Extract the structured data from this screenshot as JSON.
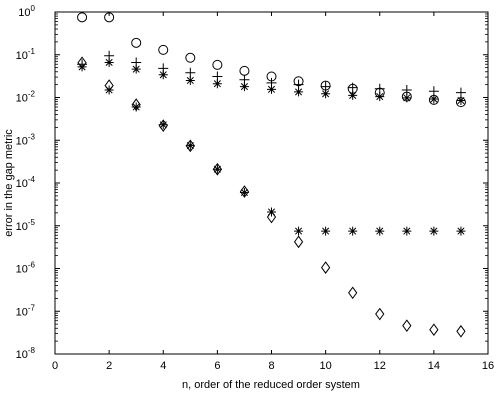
{
  "chart_data": {
    "type": "scatter",
    "xlabel": "n, order of the reduced order system",
    "ylabel": "error in the gap metric",
    "xlim": [
      0,
      16
    ],
    "ylim_log10": [
      -8,
      0
    ],
    "yscale": "log",
    "grid": false,
    "legend": "none",
    "x_ticks": [
      "0",
      "2",
      "4",
      "6",
      "8",
      "10",
      "12",
      "14",
      "16"
    ],
    "y_ticks": [
      {
        "base": "10",
        "exp": "0"
      },
      {
        "base": "10",
        "exp": "-1"
      },
      {
        "base": "10",
        "exp": "-2"
      },
      {
        "base": "10",
        "exp": "-3"
      },
      {
        "base": "10",
        "exp": "-4"
      },
      {
        "base": "10",
        "exp": "-5"
      },
      {
        "base": "10",
        "exp": "-6"
      },
      {
        "base": "10",
        "exp": "-7"
      },
      {
        "base": "10",
        "exp": "-8"
      }
    ],
    "series": [
      {
        "marker": "circle",
        "x": [
          1,
          2,
          3,
          4,
          5,
          6,
          7,
          8,
          9,
          10,
          11,
          12,
          13,
          14,
          15
        ],
        "y": [
          0.75,
          0.75,
          0.19,
          0.13,
          0.085,
          0.058,
          0.042,
          0.031,
          0.024,
          0.019,
          0.016,
          0.013,
          0.0105,
          0.0088,
          0.0078
        ]
      },
      {
        "marker": "plus",
        "x": [
          1,
          2,
          3,
          4,
          5,
          6,
          7,
          8,
          9,
          10,
          11,
          12,
          13,
          14,
          15
        ],
        "y": [
          0.06,
          0.095,
          0.066,
          0.048,
          0.038,
          0.031,
          0.026,
          0.022,
          0.02,
          0.018,
          0.017,
          0.016,
          0.015,
          0.014,
          0.013
        ]
      },
      {
        "marker": "asterisk",
        "x": [
          1,
          2,
          3,
          4,
          5,
          6,
          7,
          8,
          9,
          10,
          11,
          12,
          13,
          14,
          15
        ],
        "y": [
          0.052,
          0.015,
          0.006,
          0.0023,
          0.00075,
          0.00021,
          6e-05,
          2.1e-05,
          7.5e-06,
          7.5e-06,
          7.5e-06,
          7.5e-06,
          7.5e-06,
          7.5e-06,
          7.5e-06
        ]
      },
      {
        "marker": "diamond",
        "x": [
          1,
          2,
          3,
          4,
          5,
          6,
          7,
          8,
          9,
          10,
          11,
          12,
          13,
          14,
          15
        ],
        "y": [
          0.065,
          0.019,
          0.0068,
          0.0022,
          0.00074,
          0.00021,
          6.3e-05,
          1.6e-05,
          4.2e-06,
          1.05e-06,
          2.7e-07,
          8.6e-08,
          4.6e-08,
          3.7e-08,
          3.4e-08
        ]
      }
    ],
    "extra_markers": [
      {
        "marker": "asterisk",
        "x": [
          2,
          3,
          4,
          5,
          6,
          7,
          8,
          9,
          10,
          11,
          12,
          13,
          14,
          15
        ],
        "y": [
          0.066,
          0.046,
          0.034,
          0.025,
          0.021,
          0.018,
          0.0155,
          0.0135,
          0.0122,
          0.0112,
          0.0105,
          0.0098,
          0.0092,
          0.0085
        ]
      }
    ]
  }
}
